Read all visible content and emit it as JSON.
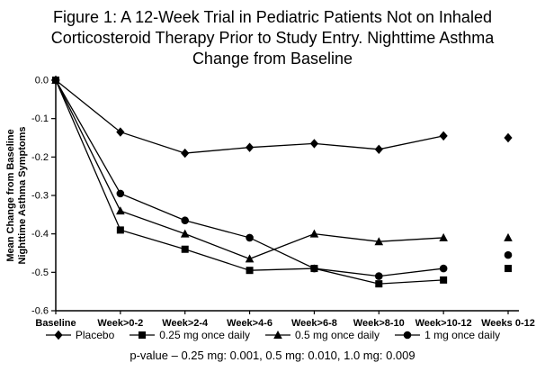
{
  "title_lines": [
    "Figure 1: A 12-Week Trial in Pediatric Patients Not on Inhaled",
    "Corticosteroid Therapy Prior to Study Entry. Nighttime Asthma",
    "Change from Baseline"
  ],
  "footnote": "p-value – 0.25 mg: 0.001, 0.5 mg: 0.010, 1.0 mg: 0.009",
  "colors": {
    "axis": "#000000",
    "series": "#000000",
    "background": "#ffffff"
  },
  "chart_data": {
    "type": "line",
    "title": "Figure 1: A 12-Week Trial in Pediatric Patients Not on Inhaled Corticosteroid Therapy Prior to Study Entry. Nighttime Asthma Change from Baseline",
    "categories": [
      "Baseline",
      "Week>0-2",
      "Week>2-4",
      "Week>4-6",
      "Week>6-8",
      "Week>8-10",
      "Week>10-12",
      "Weeks 0-12"
    ],
    "series": [
      {
        "name": "Placebo",
        "marker": "diamond",
        "values": [
          0,
          -0.135,
          -0.19,
          -0.175,
          -0.165,
          -0.18,
          -0.145,
          -0.15
        ]
      },
      {
        "name": "0.25 mg once daily",
        "marker": "square",
        "values": [
          0,
          -0.39,
          -0.44,
          -0.495,
          -0.49,
          -0.53,
          -0.52,
          -0.49
        ]
      },
      {
        "name": "0.5 mg once daily",
        "marker": "triangle",
        "values": [
          0,
          -0.34,
          -0.4,
          -0.465,
          -0.4,
          -0.42,
          -0.41,
          -0.41
        ]
      },
      {
        "name": "1 mg once daily",
        "marker": "circle",
        "values": [
          0,
          -0.295,
          -0.365,
          -0.41,
          -0.49,
          -0.51,
          -0.49,
          -0.455
        ]
      }
    ],
    "ylabel_lines": [
      "Mean Change from Baseline",
      "Nighttime Asthma Symptoms"
    ],
    "xlabel": "",
    "ylim": [
      -0.6,
      0.0
    ],
    "yticks": [
      0.0,
      -0.1,
      -0.2,
      -0.3,
      -0.4,
      -0.5,
      -0.6
    ],
    "grid": false,
    "legend_position": "bottom",
    "last_column_disconnected": true
  }
}
